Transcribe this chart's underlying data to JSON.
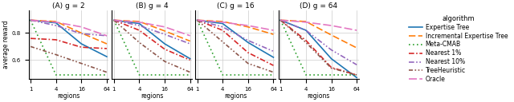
{
  "panels": [
    {
      "title": "(A) g = 2"
    },
    {
      "title": "(B) g = 4"
    },
    {
      "title": "(C) g = 16"
    },
    {
      "title": "(D) g = 64"
    }
  ],
  "x_ticks": [
    1,
    4,
    16,
    64
  ],
  "xlabel": "regions",
  "ylabel": "average reward",
  "ylim": [
    0.46,
    0.97
  ],
  "yticks": [
    0.6,
    0.8
  ],
  "algorithms": [
    "Expertise Tree",
    "Incremental Expertise Tree",
    "Meta-CMAB",
    "Nearest 1%",
    "Nearest 10%",
    "TreeHeuristic",
    "Oracle"
  ],
  "series": {
    "g2": {
      "Expertise Tree": [
        0.895,
        0.875,
        0.72,
        0.625
      ],
      "Incremental Expertise Tree": [
        0.895,
        0.885,
        0.8,
        0.72
      ],
      "Meta-CMAB": [
        0.895,
        0.49,
        0.49,
        0.49
      ],
      "Nearest 1%": [
        0.76,
        0.75,
        0.695,
        0.685
      ],
      "Nearest 10%": [
        0.895,
        0.855,
        0.795,
        0.78
      ],
      "TreeHeuristic": [
        0.7,
        0.64,
        0.575,
        0.51
      ],
      "Oracle": [
        0.895,
        0.88,
        0.845,
        0.78
      ]
    },
    "g4": {
      "Expertise Tree": [
        0.895,
        0.87,
        0.72,
        0.61
      ],
      "Incremental Expertise Tree": [
        0.895,
        0.885,
        0.815,
        0.74
      ],
      "Meta-CMAB": [
        0.895,
        0.49,
        0.49,
        0.49
      ],
      "Nearest 1%": [
        0.895,
        0.82,
        0.68,
        0.6
      ],
      "Nearest 10%": [
        0.895,
        0.855,
        0.79,
        0.72
      ],
      "TreeHeuristic": [
        0.895,
        0.73,
        0.59,
        0.51
      ],
      "Oracle": [
        0.895,
        0.88,
        0.845,
        0.78
      ]
    },
    "g16": {
      "Expertise Tree": [
        0.895,
        0.87,
        0.73,
        0.62
      ],
      "Incremental Expertise Tree": [
        0.895,
        0.885,
        0.845,
        0.79
      ],
      "Meta-CMAB": [
        0.895,
        0.49,
        0.49,
        0.49
      ],
      "Nearest 1%": [
        0.895,
        0.82,
        0.655,
        0.56
      ],
      "Nearest 10%": [
        0.895,
        0.845,
        0.745,
        0.665
      ],
      "TreeHeuristic": [
        0.895,
        0.735,
        0.575,
        0.51
      ],
      "Oracle": [
        0.895,
        0.88,
        0.855,
        0.82
      ]
    },
    "g64": {
      "Expertise Tree": [
        0.895,
        0.82,
        0.61,
        0.47
      ],
      "Incremental Expertise Tree": [
        0.895,
        0.885,
        0.785,
        0.69
      ],
      "Meta-CMAB": [
        0.895,
        0.49,
        0.49,
        0.49
      ],
      "Nearest 1%": [
        0.895,
        0.745,
        0.545,
        0.49
      ],
      "Nearest 10%": [
        0.895,
        0.82,
        0.675,
        0.565
      ],
      "TreeHeuristic": [
        0.895,
        0.73,
        0.54,
        0.49
      ],
      "Oracle": [
        0.895,
        0.88,
        0.855,
        0.82
      ]
    }
  },
  "legend_title": "algorithm",
  "grid_color": "#cccccc",
  "bg_color": "#ffffff",
  "title_fontsize": 6.5,
  "label_fontsize": 5.5,
  "tick_fontsize": 5.0,
  "legend_fontsize": 5.5,
  "legend_title_fontsize": 6.0,
  "linewidth": 1.2
}
